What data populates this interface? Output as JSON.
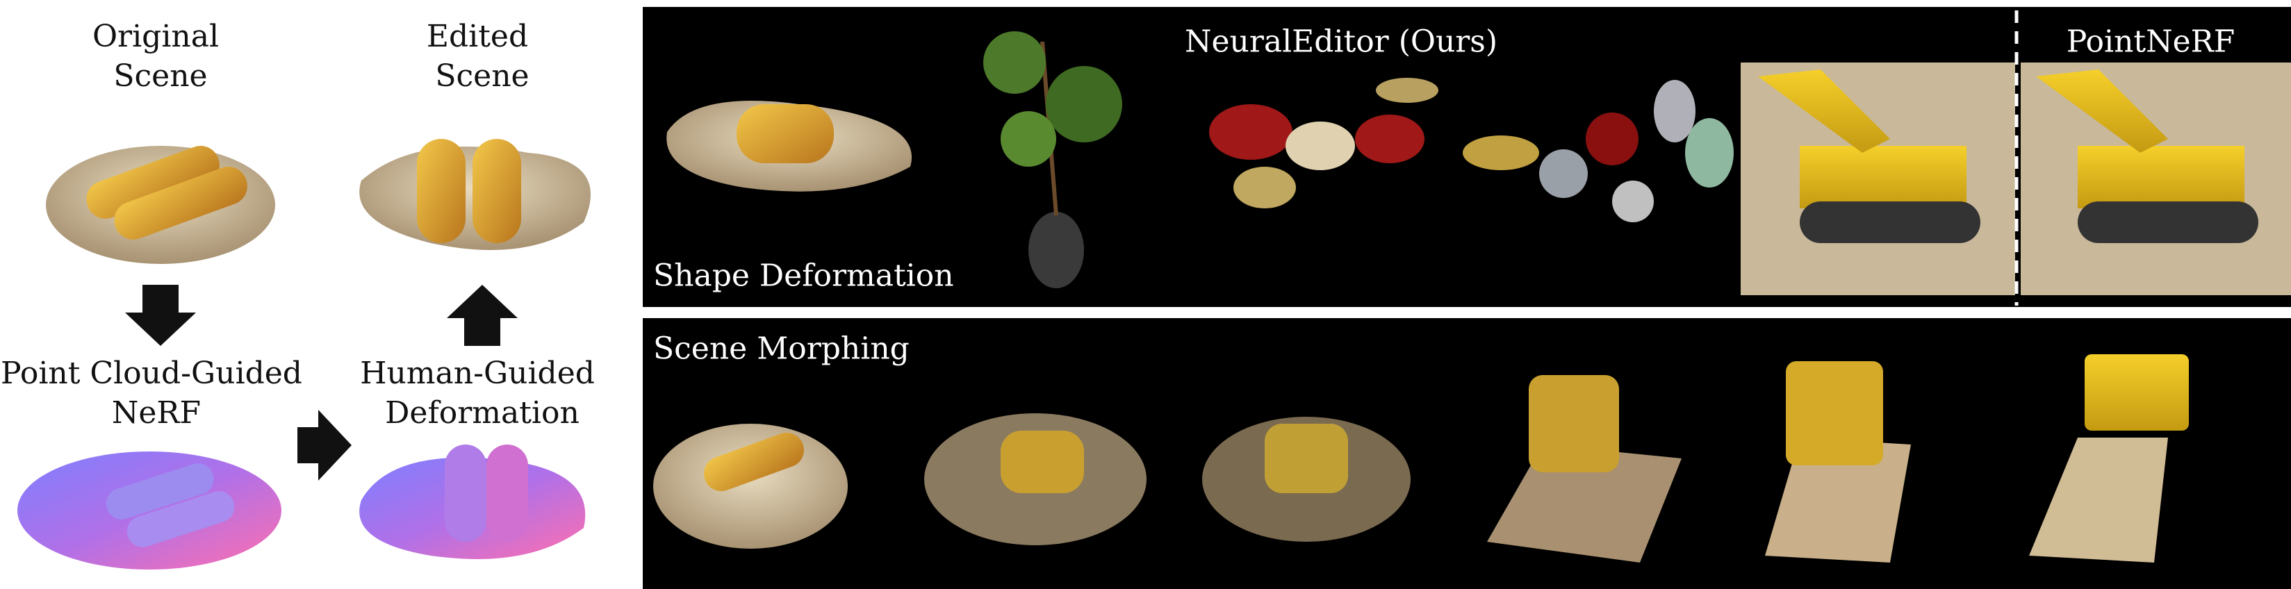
{
  "left_panel": {
    "original_scene": [
      "Original",
      "Scene"
    ],
    "edited_scene": [
      "Edited",
      "Scene"
    ],
    "point_cloud_nerf": [
      "Point Cloud-Guided",
      "NeRF"
    ],
    "human_guided_deformation": [
      "Human-Guided",
      "Deformation"
    ]
  },
  "top_panel": {
    "method_label": "NeuralEditor (Ours)",
    "baseline_label": "PointNeRF",
    "task_label": "Shape Deformation"
  },
  "bottom_panel": {
    "task_label": "Scene Morphing"
  }
}
